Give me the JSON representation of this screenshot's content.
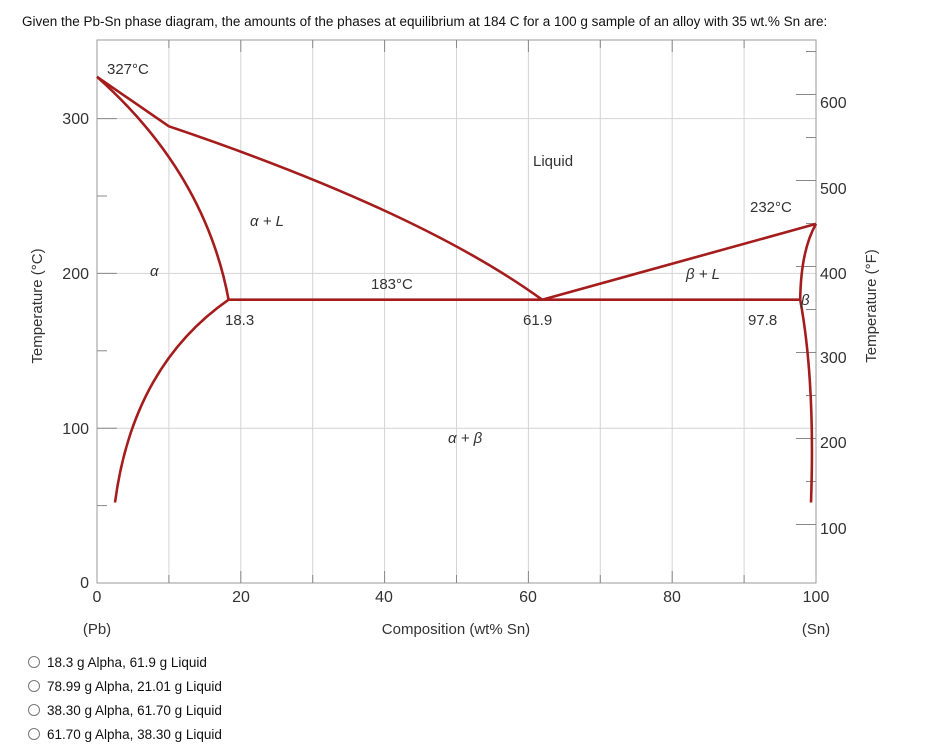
{
  "question": "Given the Pb-Sn phase diagram, the amounts of the phases at equilibrium at 184 C for a 100 g sample of an alloy with 35 wt.% Sn are:",
  "options": [
    "18.3 g Alpha, 61.9 g Liquid",
    "78.99 g Alpha, 21.01 g Liquid",
    "38.30 g Alpha, 61.70 g Liquid",
    "61.70 g Alpha, 38.30 g Liquid"
  ],
  "diagram": {
    "x_axis_title": "Composition (wt% Sn)",
    "y_left_title": "Temperature (°C)",
    "y_right_title": "Temperature (°F)",
    "x_ticks": [
      "0",
      "20",
      "40",
      "60",
      "80",
      "100"
    ],
    "x_tick_values": [
      0,
      20,
      40,
      60,
      80,
      100
    ],
    "y_left_ticks": [
      "0",
      "100",
      "200",
      "300"
    ],
    "y_left_tick_values": [
      0,
      100,
      200,
      300
    ],
    "y_right_ticks": [
      "100",
      "200",
      "300",
      "400",
      "500",
      "600"
    ],
    "y_right_tick_values": [
      100,
      200,
      300,
      400,
      500,
      600
    ],
    "pb_label": "(Pb)",
    "sn_label": "(Sn)",
    "pb_melting_label": "327°C",
    "sn_melting_label": "232°C",
    "eutectic_temp_label": "183°C",
    "alpha_solubility_label": "18.3",
    "eutectic_comp_label": "61.9",
    "beta_solubility_label": "97.8",
    "liquid_label": "Liquid",
    "alpha_l_label": "α + L",
    "alpha_label": "α",
    "beta_l_label": "β + L",
    "beta_label": "β",
    "alpha_beta_label": "α + β",
    "line_color": "#a51c1c",
    "pb_melting_point": [
      0,
      327
    ],
    "sn_melting_point": [
      100,
      232
    ],
    "eutectic_temperature": 183,
    "eutectic_composition": [
      18.3,
      61.9,
      97.8
    ]
  }
}
